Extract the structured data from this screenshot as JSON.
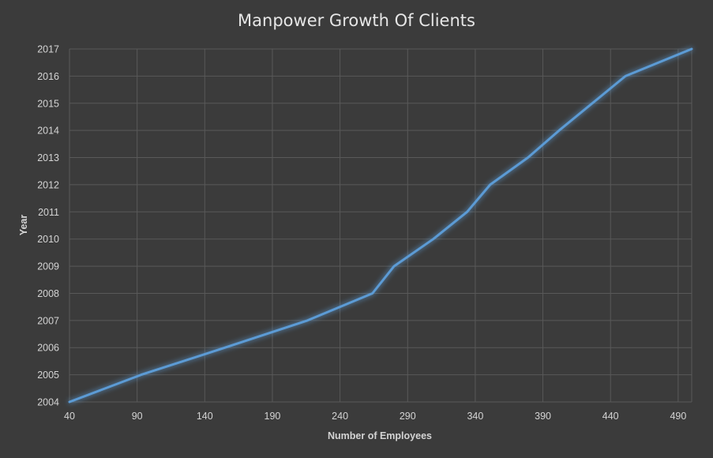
{
  "chart_data": {
    "type": "line",
    "title": "Manpower Growth Of Clients",
    "xlabel": "Number of Employees",
    "ylabel": "Year",
    "xlim": [
      40,
      500
    ],
    "ylim": [
      2004,
      2017
    ],
    "x_ticks": [
      "40",
      "90",
      "140",
      "190",
      "240",
      "290",
      "340",
      "390",
      "440",
      "490"
    ],
    "y_ticks": [
      "2004",
      "2005",
      "2006",
      "2007",
      "2008",
      "2009",
      "2010",
      "2011",
      "2012",
      "2013",
      "2014",
      "2015",
      "2016",
      "2017"
    ],
    "grid": true,
    "legend": "none",
    "series": [
      {
        "color": "#5b9bd5",
        "points": [
          {
            "x": 40,
            "y": 2004
          },
          {
            "x": 93,
            "y": 2005
          },
          {
            "x": 155,
            "y": 2006
          },
          {
            "x": 216,
            "y": 2007
          },
          {
            "x": 264,
            "y": 2008
          },
          {
            "x": 280,
            "y": 2009
          },
          {
            "x": 309,
            "y": 2010
          },
          {
            "x": 334,
            "y": 2011
          },
          {
            "x": 351,
            "y": 2012
          },
          {
            "x": 379,
            "y": 2013
          },
          {
            "x": 402,
            "y": 2014
          },
          {
            "x": 451,
            "y": 2016
          },
          {
            "x": 500,
            "y": 2017
          }
        ]
      }
    ]
  },
  "colors": {
    "background": "#3b3b3b",
    "gridline": "#595959",
    "text": "#d4d4d4",
    "line": "#5b9bd5"
  }
}
